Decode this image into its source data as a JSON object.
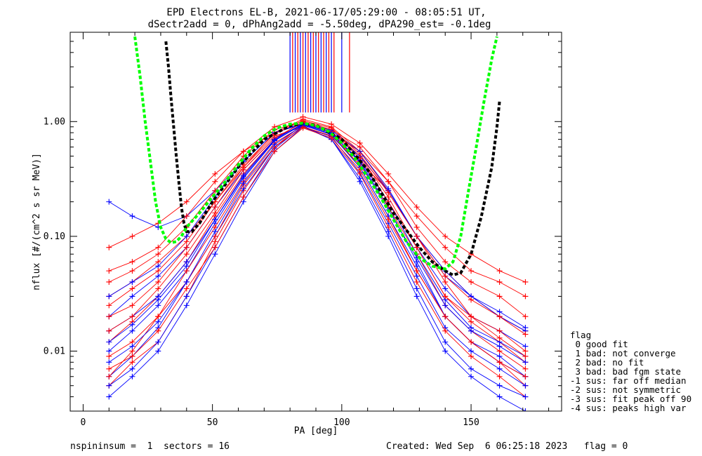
{
  "title_line1": "EPD Electrons EL-B, 2021-06-17/05:29:00 - 08:05:51 UT,",
  "title_line2": "dSectr2add = 0, dPhAng2add = -5.50deg, dPA290_est=  -0.1deg",
  "xlabel": "PA [deg]",
  "ylabel": "nflux [#/(cm^2 s sr MeV)]",
  "x_ticks": [
    "0",
    "50",
    "100",
    "150"
  ],
  "y_ticks": [
    "0.01",
    "0.10",
    "1.00"
  ],
  "footer_left": "nspininsum =  1  sectors = 16",
  "footer_right": "Created: Wed Sep  6 06:25:18 2023   flag = 0",
  "legend": {
    "title": "flag",
    "items": [
      " 0 good fit",
      " 1 bad: not converge",
      " 2 bad: no fit",
      " 3 bad: bad fgm state",
      "-1 sus: far off median",
      "-2 sus: not symmetric",
      "-3 sus: fit peak off 90",
      "-4 sus: peaks high var"
    ]
  },
  "colors": {
    "red_series": "#ff0000",
    "blue_series": "#0000ff",
    "green_fit": "#00ff00",
    "black_fit": "#000000"
  },
  "chart_data": {
    "type": "line",
    "xlim": [
      -5,
      185
    ],
    "ylim": [
      0.003,
      6.0
    ],
    "yscale": "log",
    "pa_bins": [
      10,
      19,
      29,
      40,
      51,
      62,
      74,
      85,
      96,
      107,
      118,
      129,
      140,
      150,
      161,
      171
    ],
    "series": [
      {
        "color": "red",
        "profiles": [
          [
            0.005,
            0.008,
            0.012,
            0.03,
            0.09,
            0.25,
            0.6,
            0.95,
            0.8,
            0.4,
            0.15,
            0.05,
            0.02,
            0.012,
            0.008,
            0.005
          ],
          [
            0.012,
            0.018,
            0.03,
            0.06,
            0.15,
            0.35,
            0.7,
            1.0,
            0.85,
            0.5,
            0.22,
            0.08,
            0.03,
            0.018,
            0.012,
            0.008
          ],
          [
            0.03,
            0.04,
            0.06,
            0.1,
            0.2,
            0.4,
            0.75,
            0.9,
            0.75,
            0.45,
            0.25,
            0.1,
            0.05,
            0.03,
            0.02,
            0.015
          ],
          [
            0.08,
            0.1,
            0.13,
            0.2,
            0.35,
            0.55,
            0.8,
            0.95,
            0.8,
            0.55,
            0.3,
            0.15,
            0.08,
            0.05,
            0.04,
            0.03
          ],
          [
            0.006,
            0.01,
            0.02,
            0.05,
            0.12,
            0.3,
            0.65,
            0.92,
            0.7,
            0.35,
            0.12,
            0.04,
            0.015,
            0.009,
            0.006,
            0.004
          ],
          [
            0.02,
            0.025,
            0.04,
            0.08,
            0.18,
            0.4,
            0.8,
            1.05,
            0.9,
            0.55,
            0.25,
            0.1,
            0.04,
            0.02,
            0.015,
            0.01
          ],
          [
            0.04,
            0.05,
            0.07,
            0.12,
            0.25,
            0.5,
            0.85,
            1.0,
            0.85,
            0.6,
            0.3,
            0.12,
            0.06,
            0.04,
            0.03,
            0.02
          ],
          [
            0.009,
            0.012,
            0.02,
            0.04,
            0.1,
            0.28,
            0.6,
            0.9,
            0.75,
            0.42,
            0.18,
            0.07,
            0.025,
            0.015,
            0.01,
            0.007
          ],
          [
            0.05,
            0.06,
            0.08,
            0.15,
            0.3,
            0.55,
            0.9,
            1.1,
            0.95,
            0.65,
            0.35,
            0.18,
            0.1,
            0.07,
            0.05,
            0.04
          ],
          [
            0.015,
            0.02,
            0.035,
            0.07,
            0.16,
            0.38,
            0.72,
            0.98,
            0.82,
            0.48,
            0.2,
            0.08,
            0.03,
            0.02,
            0.013,
            0.009
          ],
          [
            0.007,
            0.009,
            0.015,
            0.035,
            0.08,
            0.22,
            0.55,
            0.88,
            0.72,
            0.38,
            0.14,
            0.05,
            0.02,
            0.012,
            0.008,
            0.006
          ],
          [
            0.025,
            0.035,
            0.05,
            0.09,
            0.2,
            0.42,
            0.78,
            1.02,
            0.88,
            0.52,
            0.24,
            0.1,
            0.045,
            0.028,
            0.02,
            0.014
          ]
        ]
      },
      {
        "color": "blue",
        "profiles": [
          [
            0.004,
            0.006,
            0.01,
            0.025,
            0.07,
            0.2,
            0.55,
            0.9,
            0.7,
            0.3,
            0.1,
            0.03,
            0.01,
            0.006,
            0.004,
            0.003
          ],
          [
            0.01,
            0.015,
            0.025,
            0.05,
            0.13,
            0.32,
            0.68,
            0.95,
            0.8,
            0.45,
            0.18,
            0.06,
            0.02,
            0.012,
            0.008,
            0.006
          ],
          [
            0.02,
            0.03,
            0.045,
            0.08,
            0.18,
            0.38,
            0.72,
            0.93,
            0.78,
            0.46,
            0.2,
            0.08,
            0.035,
            0.02,
            0.015,
            0.011
          ],
          [
            0.006,
            0.009,
            0.016,
            0.04,
            0.1,
            0.26,
            0.6,
            0.9,
            0.74,
            0.36,
            0.13,
            0.045,
            0.016,
            0.01,
            0.007,
            0.005
          ],
          [
            0.015,
            0.02,
            0.03,
            0.06,
            0.14,
            0.34,
            0.7,
            0.96,
            0.82,
            0.48,
            0.2,
            0.07,
            0.028,
            0.016,
            0.012,
            0.009
          ],
          [
            0.2,
            0.15,
            0.12,
            0.15,
            0.25,
            0.45,
            0.8,
            0.95,
            0.8,
            0.5,
            0.25,
            0.1,
            0.05,
            0.03,
            0.02,
            0.015
          ],
          [
            0.005,
            0.007,
            0.012,
            0.03,
            0.08,
            0.22,
            0.58,
            0.92,
            0.7,
            0.32,
            0.11,
            0.035,
            0.012,
            0.007,
            0.005,
            0.004
          ],
          [
            0.03,
            0.04,
            0.055,
            0.1,
            0.22,
            0.45,
            0.8,
            0.97,
            0.84,
            0.55,
            0.26,
            0.1,
            0.045,
            0.03,
            0.022,
            0.016
          ],
          [
            0.008,
            0.011,
            0.018,
            0.04,
            0.11,
            0.29,
            0.63,
            0.93,
            0.77,
            0.4,
            0.15,
            0.055,
            0.02,
            0.012,
            0.009,
            0.006
          ],
          [
            0.012,
            0.017,
            0.028,
            0.055,
            0.14,
            0.33,
            0.69,
            0.94,
            0.8,
            0.44,
            0.17,
            0.065,
            0.025,
            0.015,
            0.011,
            0.008
          ]
        ]
      }
    ],
    "vertical_markers": {
      "x": [
        80,
        81,
        82,
        83,
        84,
        85,
        86,
        87,
        88,
        89,
        90,
        91,
        92,
        93,
        94,
        95,
        96,
        97,
        100,
        103
      ],
      "y_bottom": 1.2
    },
    "green_fit": {
      "x": [
        20,
        22,
        24,
        26,
        28,
        30,
        32,
        34,
        36,
        38,
        40,
        45,
        50,
        55,
        60,
        65,
        70,
        75,
        80,
        85,
        90,
        95,
        100,
        105,
        110,
        115,
        120,
        125,
        130,
        135,
        140,
        143,
        146,
        149,
        152,
        155,
        158,
        160
      ],
      "y": [
        5.5,
        2.5,
        1.0,
        0.45,
        0.2,
        0.12,
        0.095,
        0.088,
        0.09,
        0.1,
        0.12,
        0.16,
        0.22,
        0.3,
        0.42,
        0.58,
        0.75,
        0.88,
        0.95,
        0.97,
        0.92,
        0.82,
        0.65,
        0.48,
        0.33,
        0.22,
        0.14,
        0.09,
        0.065,
        0.055,
        0.052,
        0.06,
        0.1,
        0.25,
        0.6,
        1.5,
        3.5,
        5.5
      ]
    },
    "black_fit": {
      "x": [
        32,
        33,
        34,
        35,
        36,
        37,
        38,
        39,
        40,
        42,
        45,
        50,
        60,
        70,
        80,
        85,
        90,
        100,
        110,
        120,
        130,
        135,
        140,
        143,
        146,
        150,
        154,
        158,
        160,
        161
      ],
      "y": [
        5.0,
        3.0,
        1.6,
        0.9,
        0.5,
        0.3,
        0.18,
        0.13,
        0.11,
        0.11,
        0.13,
        0.2,
        0.4,
        0.7,
        0.92,
        0.96,
        0.93,
        0.7,
        0.38,
        0.16,
        0.08,
        0.06,
        0.05,
        0.046,
        0.048,
        0.07,
        0.15,
        0.4,
        0.9,
        1.5
      ]
    }
  }
}
